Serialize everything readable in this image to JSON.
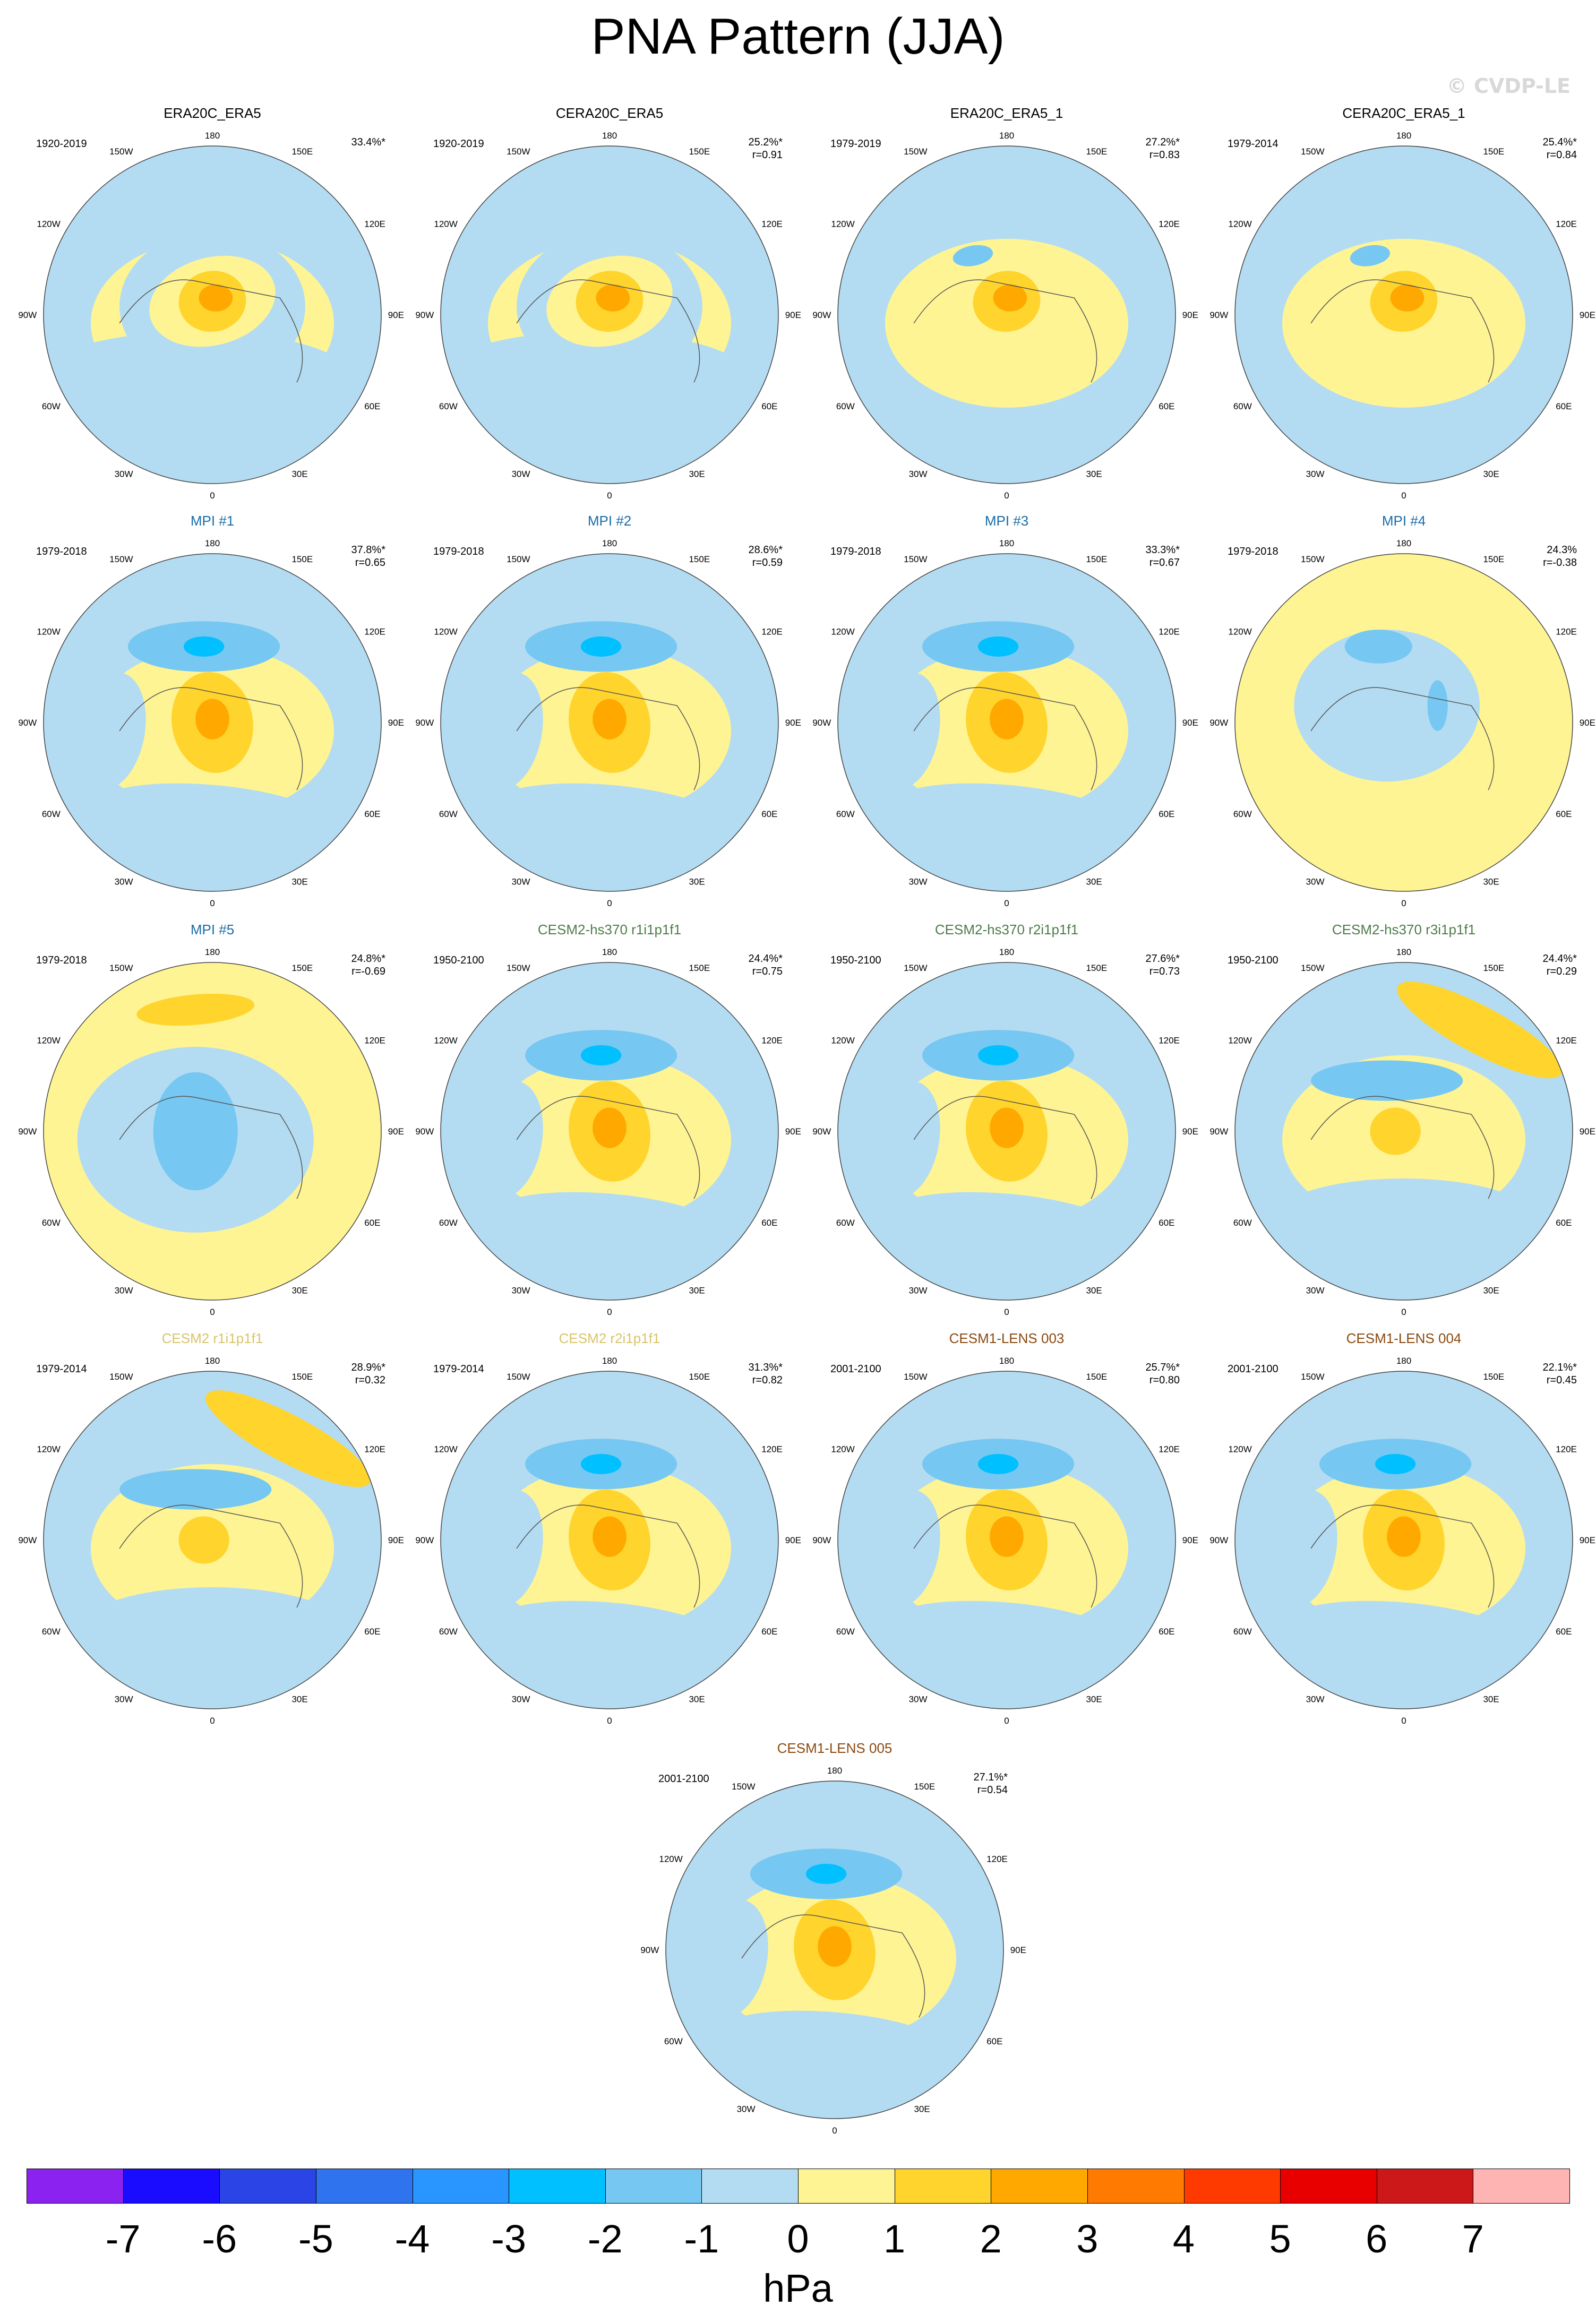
{
  "title": "PNA Pattern (JJA)",
  "watermark": "© CVDP-LE",
  "lon_labels": {
    "top": "180",
    "bottom": "0",
    "l1": "150W",
    "r1": "150E",
    "l2": "120W",
    "r2": "120E",
    "l3": "90W",
    "r3": "90E",
    "l4": "60W",
    "r4": "60E",
    "l5": "30W",
    "r5": "30E"
  },
  "panels": [
    {
      "title": "ERA20C_ERA5",
      "title_color": "#000000",
      "years": "1920-2019",
      "pct": "33.4%*",
      "r": "",
      "pattern": "obs"
    },
    {
      "title": "CERA20C_ERA5",
      "title_color": "#000000",
      "years": "1920-2019",
      "pct": "25.2%*",
      "r": "r=0.91",
      "pattern": "obs"
    },
    {
      "title": "ERA20C_ERA5_1",
      "title_color": "#000000",
      "years": "1979-2019",
      "pct": "27.2%*",
      "r": "r=0.83",
      "pattern": "obs2"
    },
    {
      "title": "CERA20C_ERA5_1",
      "title_color": "#000000",
      "years": "1979-2014",
      "pct": "25.4%*",
      "r": "r=0.84",
      "pattern": "obs2"
    },
    {
      "title": "MPI #1",
      "title_color": "#1a6ea8",
      "years": "1979-2018",
      "pct": "37.8%*",
      "r": "r=0.65",
      "pattern": "model"
    },
    {
      "title": "MPI #2",
      "title_color": "#1a6ea8",
      "years": "1979-2018",
      "pct": "28.6%*",
      "r": "r=0.59",
      "pattern": "model"
    },
    {
      "title": "MPI #3",
      "title_color": "#1a6ea8",
      "years": "1979-2018",
      "pct": "33.3%*",
      "r": "r=0.67",
      "pattern": "model"
    },
    {
      "title": "MPI #4",
      "title_color": "#1a6ea8",
      "years": "1979-2018",
      "pct": "24.3%",
      "r": "r=-0.38",
      "pattern": "neg"
    },
    {
      "title": "MPI #5",
      "title_color": "#1a6ea8",
      "years": "1979-2018",
      "pct": "24.8%*",
      "r": "r=-0.69",
      "pattern": "neg2"
    },
    {
      "title": "CESM2-hs370 r1i1p1f1",
      "title_color": "#4e7d4a",
      "years": "1950-2100",
      "pct": "24.4%*",
      "r": "r=0.75",
      "pattern": "model"
    },
    {
      "title": "CESM2-hs370 r2i1p1f1",
      "title_color": "#4e7d4a",
      "years": "1950-2100",
      "pct": "27.6%*",
      "r": "r=0.73",
      "pattern": "model"
    },
    {
      "title": "CESM2-hs370 r3i1p1f1",
      "title_color": "#4e7d4a",
      "years": "1950-2100",
      "pct": "24.4%*",
      "r": "r=0.29",
      "pattern": "weak"
    },
    {
      "title": "CESM2 r1i1p1f1",
      "title_color": "#d9c46a",
      "years": "1979-2014",
      "pct": "28.9%*",
      "r": "r=0.32",
      "pattern": "weak"
    },
    {
      "title": "CESM2 r2i1p1f1",
      "title_color": "#d9c46a",
      "years": "1979-2014",
      "pct": "31.3%*",
      "r": "r=0.82",
      "pattern": "model"
    },
    {
      "title": "CESM1-LENS 003",
      "title_color": "#8a4a12",
      "years": "2001-2100",
      "pct": "25.7%*",
      "r": "r=0.80",
      "pattern": "model"
    },
    {
      "title": "CESM1-LENS 004",
      "title_color": "#8a4a12",
      "years": "2001-2100",
      "pct": "22.1%*",
      "r": "r=0.45",
      "pattern": "model"
    },
    {
      "title": "CESM1-LENS 005",
      "title_color": "#8a4a12",
      "years": "2001-2100",
      "pct": "27.1%*",
      "r": "r=0.54",
      "pattern": "model"
    }
  ],
  "colorbar": {
    "colors": [
      "#8b22f0",
      "#1a0cff",
      "#2a44e6",
      "#2f74ee",
      "#2996ff",
      "#00c0ff",
      "#76c7f2",
      "#b3dcf2",
      "#fff494",
      "#ffd42c",
      "#ffa800",
      "#ff7a00",
      "#ff3a00",
      "#e80000",
      "#cc1818",
      "#ffb4b4"
    ],
    "labels": [
      "-7",
      "-6",
      "-5",
      "-4",
      "-3",
      "-2",
      "-1",
      "0",
      "1",
      "2",
      "3",
      "4",
      "5",
      "6",
      "7"
    ],
    "units": "hPa"
  },
  "fill_colors": {
    "pos1": "#fff494",
    "pos2": "#ffd42c",
    "pos3": "#ffa800",
    "pos4": "#ff7a00",
    "neg1": "#b3dcf2",
    "neg2": "#76c7f2",
    "neg3": "#00c0ff"
  }
}
